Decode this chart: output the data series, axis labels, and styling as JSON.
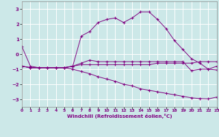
{
  "xlabel": "Windchill (Refroidissement éolien,°C)",
  "background_color": "#cce8e8",
  "grid_color": "#ffffff",
  "line_color": "#800080",
  "xlim": [
    0,
    23
  ],
  "ylim": [
    -3.5,
    3.5
  ],
  "yticks": [
    -3,
    -2,
    -1,
    0,
    1,
    2,
    3
  ],
  "xticks": [
    0,
    1,
    2,
    3,
    4,
    5,
    6,
    7,
    8,
    9,
    10,
    11,
    12,
    13,
    14,
    15,
    16,
    17,
    18,
    19,
    20,
    21,
    22,
    23
  ],
  "series": [
    [
      0.5,
      -0.8,
      -0.9,
      -0.9,
      -0.9,
      -0.9,
      -0.8,
      1.2,
      1.5,
      2.1,
      2.3,
      2.4,
      2.1,
      2.4,
      2.8,
      2.8,
      2.3,
      1.7,
      0.9,
      0.3,
      -0.3,
      -0.6,
      -1.0,
      -1.05
    ],
    [
      -0.8,
      -0.9,
      -0.9,
      -0.9,
      -0.9,
      -0.9,
      -0.8,
      -0.6,
      -0.4,
      -0.5,
      -0.5,
      -0.5,
      -0.5,
      -0.5,
      -0.5,
      -0.5,
      -0.5,
      -0.5,
      -0.5,
      -0.5,
      -1.1,
      -1.0,
      -1.0,
      -0.8
    ],
    [
      -0.8,
      -0.9,
      -0.9,
      -0.9,
      -0.9,
      -0.9,
      -0.8,
      -0.7,
      -0.7,
      -0.7,
      -0.7,
      -0.7,
      -0.7,
      -0.7,
      -0.7,
      -0.7,
      -0.6,
      -0.6,
      -0.6,
      -0.6,
      -0.6,
      -0.5,
      -0.5,
      -0.5
    ],
    [
      -0.8,
      -0.9,
      -0.9,
      -0.9,
      -0.9,
      -0.9,
      -1.0,
      -1.15,
      -1.3,
      -1.5,
      -1.65,
      -1.8,
      -2.0,
      -2.1,
      -2.3,
      -2.4,
      -2.5,
      -2.6,
      -2.7,
      -2.8,
      -2.9,
      -2.95,
      -2.97,
      -2.85
    ]
  ]
}
